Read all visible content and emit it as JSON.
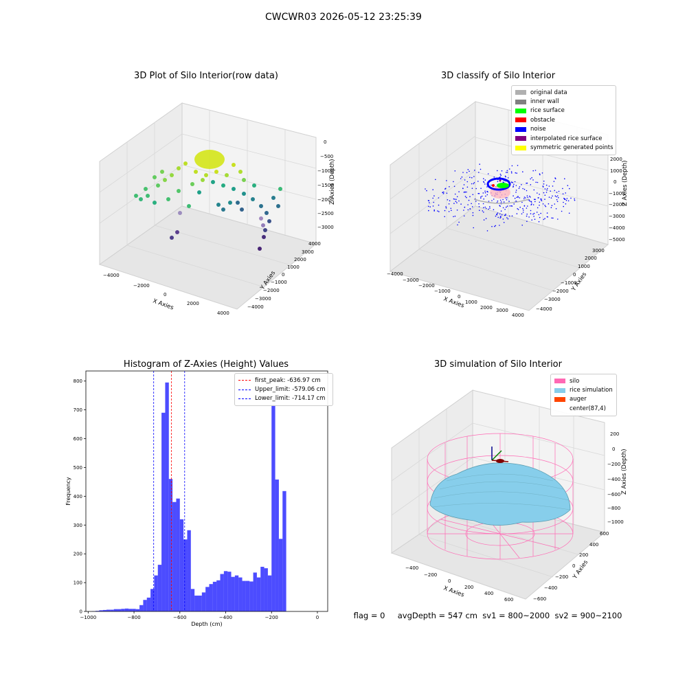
{
  "suptitle": "CWCWR03 2026-05-12 23:25:39",
  "panel1": {
    "title": "3D Plot of Silo Interior(row data)",
    "xlabel": "X Axies",
    "ylabel": "Y Axies",
    "zlabel": "Z Axies (Depth)",
    "xticks": [
      "−4000",
      "−2000",
      "0",
      "2000",
      "4000"
    ],
    "yticks": [
      "4000",
      "3000",
      "2000",
      "1000",
      "0",
      "−1000",
      "−2000",
      "−3000",
      "−4000"
    ],
    "zticks": [
      "0",
      "−500",
      "−1000",
      "−1500",
      "−2000",
      "−2500",
      "−3000"
    ]
  },
  "panel2": {
    "title": "3D classify of Silo Interior",
    "xlabel": "X Axies",
    "ylabel": "Y Axies",
    "zlabel": "Z Axies (Depth)",
    "xticks": [
      "−4000",
      "−3000",
      "−2000",
      "−1000",
      "0",
      "1000",
      "2000",
      "3000",
      "4000"
    ],
    "yticks": [
      "3000",
      "2000",
      "1000",
      "0",
      "−1000",
      "−2000",
      "−3000",
      "−4000"
    ],
    "zticks": [
      "2000",
      "1000",
      "0",
      "−1000",
      "−2000",
      "−3000",
      "−4000",
      "−5000"
    ],
    "legend": [
      {
        "label": "original data",
        "color": "#b0b0b0"
      },
      {
        "label": "inner wall",
        "color": "#808080"
      },
      {
        "label": "rice surface",
        "color": "#00ff00"
      },
      {
        "label": "obstacle",
        "color": "#ff0000"
      },
      {
        "label": "noise",
        "color": "#0000ff"
      },
      {
        "label": "interpolated rice surface",
        "color": "#800080"
      },
      {
        "label": "symmetric generated points",
        "color": "#ffff00"
      }
    ]
  },
  "panel3": {
    "title": "Histogram of Z-Axies (Height) Values",
    "xlabel": "Depth (cm)",
    "ylabel": "Frequency",
    "legend": [
      {
        "label": "first_peak: -636.97 cm",
        "color": "#ff0000"
      },
      {
        "label": "Upper_limit: -579.06 cm",
        "color": "#0000ff"
      },
      {
        "label": "Lower_limit: -714.17 cm",
        "color": "#0000ff"
      }
    ]
  },
  "panel4": {
    "title": "3D simulation of Silo Interior",
    "xlabel": "X Axies",
    "ylabel": "Y Axies",
    "zlabel": "Z Axies (Depth)",
    "xticks": [
      "−400",
      "−200",
      "0",
      "200",
      "400",
      "600"
    ],
    "yticks": [
      "600",
      "400",
      "200",
      "0",
      "−200",
      "−400",
      "−600"
    ],
    "zticks": [
      "200",
      "0",
      "−200",
      "−400",
      "−600",
      "−800",
      "−1000"
    ],
    "legend": [
      {
        "label": "silo",
        "color": "#ff69b4"
      },
      {
        "label": "rice simulation",
        "color": "#87ceeb"
      },
      {
        "label": "auger",
        "color": "#ff4500"
      },
      {
        "label": "center(87,4)",
        "color": ""
      }
    ]
  },
  "footer": "flag = 0     avgDepth = 547 cm  sv1 = 800~2000  sv2 = 900~2100",
  "chart_data": [
    {
      "type": "bar",
      "title": "Histogram of Z-Axies (Height) Values",
      "xlabel": "Depth (cm)",
      "ylabel": "Frequency",
      "xlim": [
        -1010,
        45
      ],
      "ylim": [
        0,
        835
      ],
      "xticks": [
        -1000,
        -800,
        -600,
        -400,
        -200,
        0
      ],
      "yticks": [
        0,
        100,
        200,
        300,
        400,
        500,
        600,
        700,
        800
      ],
      "bin_width": 16,
      "bin_starts": [
        -984,
        -968,
        -952,
        -936,
        -920,
        -904,
        -888,
        -872,
        -856,
        -840,
        -824,
        -808,
        -792,
        -776,
        -760,
        -744,
        -728,
        -712,
        -696,
        -680,
        -664,
        -648,
        -632,
        -616,
        -600,
        -584,
        -568,
        -552,
        -536,
        -520,
        -504,
        -488,
        -472,
        -456,
        -440,
        -424,
        -408,
        -392,
        -376,
        -360,
        -344,
        -328,
        -312,
        -296,
        -280,
        -264,
        -248,
        -232,
        -216,
        -200,
        -184,
        -168,
        -152,
        -136,
        -120,
        -104,
        -88,
        -72,
        -56,
        -40,
        -24,
        -8
      ],
      "values": [
        1,
        2,
        4,
        5,
        6,
        6,
        8,
        8,
        9,
        10,
        9,
        9,
        8,
        22,
        40,
        48,
        78,
        125,
        162,
        690,
        795,
        460,
        380,
        392,
        320,
        250,
        282,
        78,
        55,
        55,
        66,
        85,
        95,
        103,
        108,
        130,
        140,
        138,
        120,
        125,
        118,
        106,
        106,
        104,
        135,
        118,
        155,
        150,
        125,
        718,
        458,
        252,
        418,
        0,
        0,
        0,
        0,
        0,
        0,
        0,
        0,
        0
      ],
      "vlines": [
        {
          "x": -636.97,
          "color": "#ff0000",
          "label": "first_peak: -636.97 cm"
        },
        {
          "x": -579.06,
          "color": "#0000ff",
          "label": "Upper_limit: -579.06 cm"
        },
        {
          "x": -714.17,
          "color": "#0000ff",
          "label": "Lower_limit: -714.17 cm"
        }
      ],
      "bar_color": "#0000ff"
    }
  ]
}
